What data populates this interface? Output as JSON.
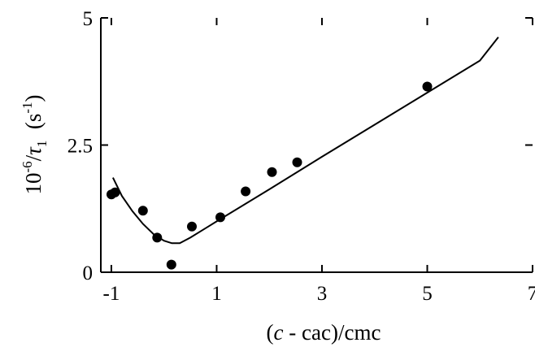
{
  "chart_data": {
    "type": "scatter",
    "title": "",
    "xlabel": {
      "pre": "(",
      "var": "c",
      "post": " - cac)/cmc"
    },
    "ylabel": {
      "prefix": "10",
      "prefix_exp": "-6",
      "slash": "/",
      "var": "τ",
      "sub": "1",
      "unit_open": "  (s",
      "unit_exp": "-1",
      "unit_close": ")"
    },
    "xlim": [
      -1.2,
      7
    ],
    "ylim": [
      0,
      5
    ],
    "x_ticks": [
      -1,
      1,
      3,
      5,
      7
    ],
    "x_tick_labels": [
      "-1",
      "1",
      "3",
      "5",
      "7"
    ],
    "y_ticks": [
      0,
      2.5,
      5
    ],
    "y_tick_labels": [
      "0",
      "2.5",
      "5"
    ],
    "grid": false,
    "legend": "none",
    "series": [
      {
        "kind": "points",
        "x": [
          -1.0,
          -0.93,
          -0.4,
          -0.13,
          0.14,
          0.53,
          1.07,
          1.55,
          2.05,
          2.53,
          5.0
        ],
        "y": [
          1.53,
          1.57,
          1.21,
          0.68,
          0.15,
          0.9,
          1.08,
          1.59,
          1.97,
          2.16,
          3.65
        ]
      },
      {
        "kind": "line",
        "x": [
          -0.97,
          -0.8,
          -0.6,
          -0.4,
          -0.2,
          0.0,
          0.15,
          0.3,
          0.5,
          1.0,
          2.0,
          3.0,
          4.0,
          5.0,
          6.0,
          6.35
        ],
        "y": [
          1.86,
          1.5,
          1.2,
          0.95,
          0.75,
          0.62,
          0.57,
          0.57,
          0.68,
          1.0,
          1.63,
          2.27,
          2.9,
          3.53,
          4.16,
          4.62
        ]
      }
    ]
  }
}
